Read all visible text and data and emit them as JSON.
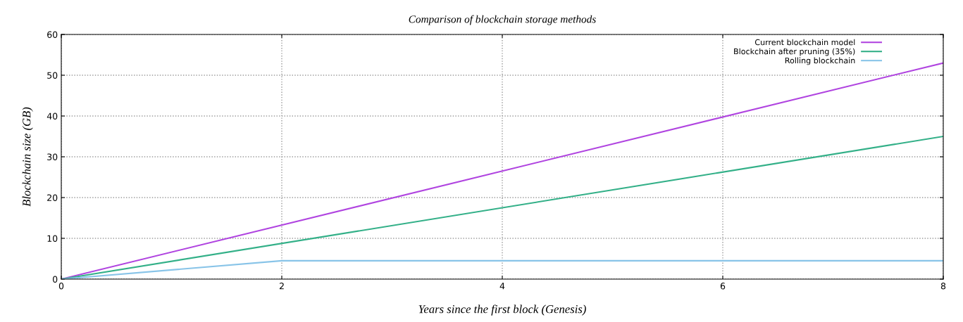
{
  "chart_data": {
    "type": "line",
    "title": "Comparison of blockchain storage methods",
    "xlabel": "Years since the first block (Genesis)",
    "ylabel": "Blockchain size (GB)",
    "xlim": [
      0,
      8
    ],
    "xticks": [
      0,
      2,
      4,
      6,
      8
    ],
    "ylim": [
      0,
      60
    ],
    "yticks": [
      0,
      10,
      20,
      30,
      40,
      50,
      60
    ],
    "grid": true,
    "legend": "top right",
    "series": [
      {
        "name": "Current blockchain model",
        "color": "#b044e0",
        "x": [
          0,
          8
        ],
        "values": [
          0,
          53
        ]
      },
      {
        "name": "Blockchain after pruning (35%)",
        "color": "#33b088",
        "x": [
          0,
          8
        ],
        "values": [
          0,
          35
        ]
      },
      {
        "name": "Rolling blockchain",
        "color": "#88c4e8",
        "x": [
          0,
          2,
          8
        ],
        "values": [
          0,
          4.5,
          4.5
        ]
      }
    ]
  }
}
